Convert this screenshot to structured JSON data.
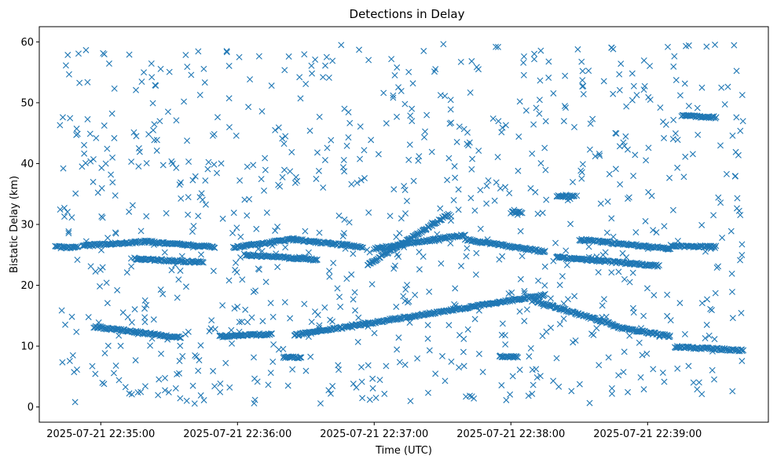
{
  "chart_data": {
    "type": "scatter",
    "title": "Detections in Delay",
    "xlabel": "Time (UTC)",
    "ylabel": "Bistatic Delay (km)",
    "marker": "x",
    "color": "#1f77b4",
    "grid": false,
    "legend": "none",
    "xlim": [
      "2025-07-21 22:34:33",
      "2025-07-21 22:39:53"
    ],
    "ylim": [
      -2.5,
      62.5
    ],
    "xticks": [
      "2025-07-21 22:35:00",
      "2025-07-21 22:36:00",
      "2025-07-21 22:37:00",
      "2025-07-21 22:38:00",
      "2025-07-21 22:39:00"
    ],
    "yticks": [
      0,
      10,
      20,
      30,
      40,
      50,
      60
    ],
    "tracks": [
      {
        "from": [
          "2025-07-21 22:34:40",
          26.3
        ],
        "to": [
          "2025-07-21 22:34:50",
          26.2
        ]
      },
      {
        "from": [
          "2025-07-21 22:34:52",
          26.5
        ],
        "to": [
          "2025-07-21 22:35:20",
          27.2
        ]
      },
      {
        "from": [
          "2025-07-21 22:35:20",
          27.2
        ],
        "to": [
          "2025-07-21 22:35:50",
          26.3
        ]
      },
      {
        "from": [
          "2025-07-21 22:35:15",
          24.3
        ],
        "to": [
          "2025-07-21 22:35:45",
          23.8
        ]
      },
      {
        "from": [
          "2025-07-21 22:34:57",
          13.2
        ],
        "to": [
          "2025-07-21 22:35:35",
          11.4
        ]
      },
      {
        "from": [
          "2025-07-21 22:35:52",
          11.6
        ],
        "to": [
          "2025-07-21 22:36:15",
          12.0
        ]
      },
      {
        "from": [
          "2025-07-21 22:35:58",
          26.2
        ],
        "to": [
          "2025-07-21 22:36:25",
          27.6
        ]
      },
      {
        "from": [
          "2025-07-21 22:36:25",
          27.5
        ],
        "to": [
          "2025-07-21 22:36:55",
          26.3
        ]
      },
      {
        "from": [
          "2025-07-21 22:36:03",
          25.0
        ],
        "to": [
          "2025-07-21 22:36:35",
          24.2
        ]
      },
      {
        "from": [
          "2025-07-21 22:36:25",
          11.8
        ],
        "to": [
          "2025-07-21 22:37:15",
          14.8
        ]
      },
      {
        "from": [
          "2025-07-21 22:37:15",
          14.8
        ],
        "to": [
          "2025-07-21 22:38:15",
          18.4
        ]
      },
      {
        "from": [
          "2025-07-21 22:36:57",
          23.3
        ],
        "to": [
          "2025-07-21 22:37:33",
          31.7
        ]
      },
      {
        "from": [
          "2025-07-21 22:37:00",
          26.0
        ],
        "to": [
          "2025-07-21 22:37:40",
          28.3
        ]
      },
      {
        "from": [
          "2025-07-21 22:37:40",
          27.5
        ],
        "to": [
          "2025-07-21 22:38:15",
          25.5
        ]
      },
      {
        "from": [
          "2025-07-21 22:38:10",
          17.5
        ],
        "to": [
          "2025-07-21 22:38:45",
          13.5
        ]
      },
      {
        "from": [
          "2025-07-21 22:38:45",
          13.2
        ],
        "to": [
          "2025-07-21 22:39:10",
          11.6
        ]
      },
      {
        "from": [
          "2025-07-21 22:38:30",
          27.5
        ],
        "to": [
          "2025-07-21 22:39:10",
          26.0
        ]
      },
      {
        "from": [
          "2025-07-21 22:38:20",
          24.6
        ],
        "to": [
          "2025-07-21 22:39:05",
          23.2
        ]
      },
      {
        "from": [
          "2025-07-21 22:39:15",
          47.9
        ],
        "to": [
          "2025-07-21 22:39:30",
          47.6
        ]
      },
      {
        "from": [
          "2025-07-21 22:39:10",
          26.5
        ],
        "to": [
          "2025-07-21 22:39:30",
          26.3
        ]
      },
      {
        "from": [
          "2025-07-21 22:39:12",
          9.9
        ],
        "to": [
          "2025-07-21 22:39:42",
          9.3
        ]
      },
      {
        "from": [
          "2025-07-21 22:36:20",
          8.2
        ],
        "to": [
          "2025-07-21 22:36:28",
          8.1
        ]
      },
      {
        "from": [
          "2025-07-21 22:38:00",
          32.0
        ],
        "to": [
          "2025-07-21 22:38:05",
          32.0
        ]
      },
      {
        "from": [
          "2025-07-21 22:38:20",
          34.7
        ],
        "to": [
          "2025-07-21 22:38:28",
          34.6
        ]
      },
      {
        "from": [
          "2025-07-21 22:37:55",
          8.2
        ],
        "to": [
          "2025-07-21 22:38:03",
          8.2
        ]
      }
    ],
    "clutter_count": 900
  }
}
